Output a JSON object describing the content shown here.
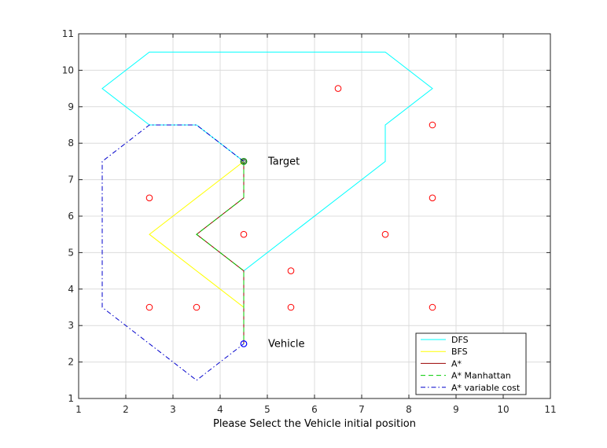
{
  "chart_data": {
    "type": "line",
    "xlabel": "Please Select the Vehicle initial position",
    "ylabel": "",
    "title": "",
    "xlim": [
      1,
      11
    ],
    "ylim": [
      1,
      11
    ],
    "xticks": [
      "1",
      "2",
      "3",
      "4",
      "5",
      "6",
      "7",
      "8",
      "9",
      "10",
      "11"
    ],
    "yticks": [
      "1",
      "2",
      "3",
      "4",
      "5",
      "6",
      "7",
      "8",
      "9",
      "10",
      "11"
    ],
    "grid": true,
    "legend_position": "bottom-right",
    "series": [
      {
        "name": "DFS",
        "color": "#00ffff",
        "dash": "solid",
        "points": [
          [
            4.5,
            7.5
          ],
          [
            3.5,
            8.5
          ],
          [
            2.5,
            8.5
          ],
          [
            1.5,
            9.5
          ],
          [
            2.5,
            10.5
          ],
          [
            7.5,
            10.5
          ],
          [
            8.5,
            9.5
          ],
          [
            7.5,
            8.5
          ],
          [
            7.5,
            7.5
          ],
          [
            4.5,
            4.5
          ],
          [
            4.5,
            2.5
          ]
        ]
      },
      {
        "name": "BFS",
        "color": "#ffff00",
        "dash": "solid",
        "points": [
          [
            4.5,
            7.5
          ],
          [
            2.5,
            5.5
          ],
          [
            4.5,
            3.5
          ],
          [
            4.5,
            2.5
          ]
        ]
      },
      {
        "name": "A*",
        "color": "#990000",
        "dash": "solid",
        "points": [
          [
            4.5,
            7.5
          ],
          [
            4.5,
            6.5
          ],
          [
            3.5,
            5.5
          ],
          [
            4.5,
            4.5
          ],
          [
            4.5,
            2.5
          ]
        ]
      },
      {
        "name": "A* Manhattan",
        "color": "#00cc00",
        "dash": "dashed",
        "points": [
          [
            4.5,
            7.5
          ],
          [
            4.5,
            6.5
          ],
          [
            3.5,
            5.5
          ],
          [
            4.5,
            4.5
          ],
          [
            4.5,
            2.5
          ]
        ]
      },
      {
        "name": "A* variable cost",
        "color": "#0000cc",
        "dash": "dashdot",
        "points": [
          [
            4.5,
            7.5
          ],
          [
            3.5,
            8.5
          ],
          [
            2.5,
            8.5
          ],
          [
            1.5,
            7.5
          ],
          [
            1.5,
            3.5
          ],
          [
            3.5,
            1.5
          ],
          [
            4.5,
            2.5
          ]
        ]
      }
    ],
    "obstacles": {
      "color": "#ff0000",
      "points": [
        [
          6.5,
          9.5
        ],
        [
          8.5,
          8.5
        ],
        [
          2.5,
          6.5
        ],
        [
          8.5,
          6.5
        ],
        [
          4.5,
          5.5
        ],
        [
          7.5,
          5.5
        ],
        [
          5.5,
          4.5
        ],
        [
          2.5,
          3.5
        ],
        [
          3.5,
          3.5
        ],
        [
          5.5,
          3.5
        ],
        [
          8.5,
          3.5
        ]
      ]
    },
    "target": {
      "label": "Target",
      "x": 4.5,
      "y": 7.5,
      "color": "#008000"
    },
    "vehicle": {
      "label": "Vehicle",
      "x": 4.5,
      "y": 2.5,
      "color": "#0000ff"
    }
  }
}
